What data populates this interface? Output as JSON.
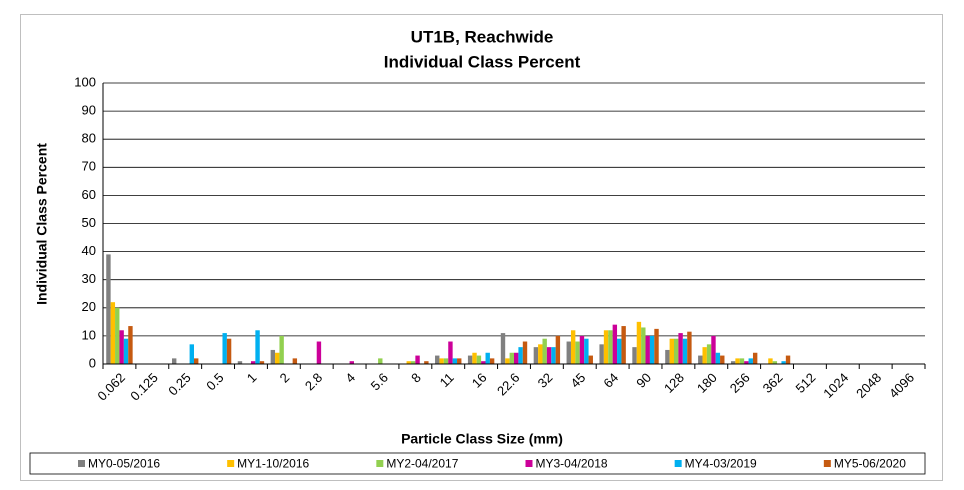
{
  "chart_data": {
    "type": "bar",
    "title": "UT1B, Reachwide",
    "subtitle": "Individual Class Percent",
    "x_label": "Particle Class Size (mm)",
    "y_label": "Individual Class Percent",
    "categories": [
      "0.062",
      "0.125",
      "0.25",
      "0.5",
      "1",
      "2",
      "2.8",
      "4",
      "5.6",
      "8",
      "11",
      "16",
      "22.6",
      "32",
      "45",
      "64",
      "90",
      "128",
      "180",
      "256",
      "362",
      "512",
      "1024",
      "2048",
      "4096"
    ],
    "series": [
      {
        "name": "MY0-05/2016",
        "color": "#808080",
        "values": [
          39,
          0,
          2,
          0,
          1,
          5,
          0,
          0,
          0,
          0,
          3,
          3,
          11,
          6,
          8,
          7,
          6,
          5,
          3,
          1,
          0,
          0,
          0,
          0,
          0
        ]
      },
      {
        "name": "MY1-10/2016",
        "color": "#ffc000",
        "values": [
          22,
          0,
          0,
          0,
          0,
          4,
          0,
          0,
          0,
          1,
          2,
          4,
          2,
          7,
          12,
          12,
          15,
          9,
          6,
          2,
          2,
          0,
          0,
          0,
          0
        ]
      },
      {
        "name": "MY2-04/2017",
        "color": "#92d050",
        "values": [
          20,
          0,
          0,
          0,
          0,
          10,
          0,
          0,
          2,
          1,
          2,
          3,
          4,
          9,
          8,
          12,
          13,
          9,
          7,
          2,
          1,
          0,
          0,
          0,
          0
        ]
      },
      {
        "name": "MY3-04/2018",
        "color": "#cc0099",
        "values": [
          12,
          0,
          0,
          0,
          1,
          0,
          8,
          1,
          0,
          3,
          8,
          1,
          4,
          6,
          10,
          14,
          10,
          11,
          10,
          1,
          0,
          0,
          0,
          0,
          0
        ]
      },
      {
        "name": "MY4-03/2019",
        "color": "#00b0f0",
        "values": [
          9,
          0,
          7,
          11,
          12,
          0,
          0,
          0,
          0,
          0,
          2,
          4,
          6,
          6,
          9,
          9,
          10,
          9,
          4,
          2,
          1,
          0,
          0,
          0,
          0
        ]
      },
      {
        "name": "MY5-06/2020",
        "color": "#c55a11",
        "values": [
          13.5,
          0,
          2,
          9,
          1,
          2,
          0,
          0,
          0,
          1,
          2,
          2,
          8,
          10,
          3,
          13.5,
          12.5,
          11.5,
          3,
          4,
          3,
          0,
          0,
          0,
          0
        ]
      }
    ],
    "ylim": [
      0,
      100
    ],
    "yticks": [
      0,
      10,
      20,
      30,
      40,
      50,
      60,
      70,
      80,
      90,
      100
    ],
    "grid": true,
    "legend": "bottom"
  }
}
